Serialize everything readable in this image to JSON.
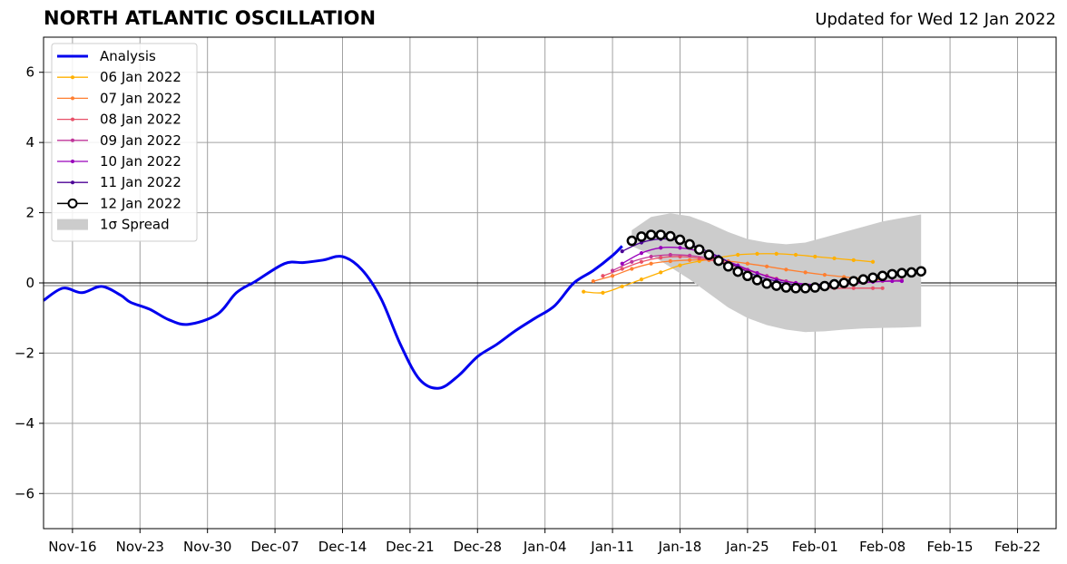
{
  "header": {
    "title": "NORTH ATLANTIC OSCILLATION",
    "updated": "Updated for Wed 12 Jan 2022"
  },
  "chart_data": {
    "type": "line",
    "title": "NORTH ATLANTIC OSCILLATION",
    "subtitle": "Updated for Wed 12 Jan 2022",
    "xlabel": "",
    "ylabel": "",
    "xlim": [
      "2021-11-13",
      "2022-02-26"
    ],
    "ylim": [
      -7,
      7
    ],
    "grid": true,
    "legend_position": "top-left",
    "x_ticks": [
      {
        "date": "2021-11-16",
        "label": "Nov-16"
      },
      {
        "date": "2021-11-23",
        "label": "Nov-23"
      },
      {
        "date": "2021-11-30",
        "label": "Nov-30"
      },
      {
        "date": "2021-12-07",
        "label": "Dec-07"
      },
      {
        "date": "2021-12-14",
        "label": "Dec-14"
      },
      {
        "date": "2021-12-21",
        "label": "Dec-21"
      },
      {
        "date": "2021-12-28",
        "label": "Dec-28"
      },
      {
        "date": "2022-01-04",
        "label": "Jan-04"
      },
      {
        "date": "2022-01-11",
        "label": "Jan-11"
      },
      {
        "date": "2022-01-18",
        "label": "Jan-18"
      },
      {
        "date": "2022-01-25",
        "label": "Jan-25"
      },
      {
        "date": "2022-02-01",
        "label": "Feb-01"
      },
      {
        "date": "2022-02-08",
        "label": "Feb-08"
      },
      {
        "date": "2022-02-15",
        "label": "Feb-15"
      },
      {
        "date": "2022-02-22",
        "label": "Feb-22"
      }
    ],
    "y_ticks": [
      {
        "value": 6,
        "label": "6"
      },
      {
        "value": 4,
        "label": "4"
      },
      {
        "value": 2,
        "label": "2"
      },
      {
        "value": 0,
        "label": "0"
      },
      {
        "value": -2,
        "label": "−2"
      },
      {
        "value": -4,
        "label": "−4"
      },
      {
        "value": -6,
        "label": "−6"
      }
    ],
    "series": [
      {
        "name": "Analysis",
        "color": "#0000ee",
        "style": "thick-line",
        "x": [
          "2021-11-13",
          "2021-11-15",
          "2021-11-17",
          "2021-11-19",
          "2021-11-21",
          "2021-11-22",
          "2021-11-24",
          "2021-11-26",
          "2021-11-28",
          "2021-12-01",
          "2021-12-03",
          "2021-12-05",
          "2021-12-08",
          "2021-12-10",
          "2021-12-12",
          "2021-12-14",
          "2021-12-16",
          "2021-12-18",
          "2021-12-20",
          "2021-12-22",
          "2021-12-24",
          "2021-12-26",
          "2021-12-28",
          "2021-12-30",
          "2022-01-01",
          "2022-01-03",
          "2022-01-05",
          "2022-01-07",
          "2022-01-09",
          "2022-01-11",
          "2022-01-12"
        ],
        "y": [
          -0.5,
          -0.15,
          -0.28,
          -0.1,
          -0.35,
          -0.55,
          -0.75,
          -1.05,
          -1.18,
          -0.9,
          -0.28,
          0.05,
          0.55,
          0.58,
          0.65,
          0.75,
          0.38,
          -0.45,
          -1.75,
          -2.75,
          -3.0,
          -2.65,
          -2.1,
          -1.75,
          -1.35,
          -1.0,
          -0.65,
          0.0,
          0.35,
          0.78,
          1.05
        ]
      },
      {
        "name": "06 Jan 2022",
        "color": "#ffb000",
        "style": "thin-dot",
        "x": [
          "2022-01-08",
          "2022-01-10",
          "2022-01-12",
          "2022-01-14",
          "2022-01-16",
          "2022-01-18",
          "2022-01-20",
          "2022-01-22",
          "2022-01-24",
          "2022-01-26",
          "2022-01-28",
          "2022-01-30",
          "2022-02-01",
          "2022-02-03",
          "2022-02-05",
          "2022-02-07"
        ],
        "y": [
          -0.25,
          -0.28,
          -0.1,
          0.1,
          0.3,
          0.5,
          0.62,
          0.72,
          0.8,
          0.83,
          0.83,
          0.8,
          0.75,
          0.7,
          0.65,
          0.6
        ]
      },
      {
        "name": "07 Jan 2022",
        "color": "#ff7f30",
        "style": "thin-dot",
        "x": [
          "2022-01-09",
          "2022-01-11",
          "2022-01-13",
          "2022-01-15",
          "2022-01-17",
          "2022-01-19",
          "2022-01-21",
          "2022-01-23",
          "2022-01-25",
          "2022-01-27",
          "2022-01-29",
          "2022-01-31",
          "2022-02-02",
          "2022-02-04",
          "2022-02-06",
          "2022-02-08"
        ],
        "y": [
          0.05,
          0.2,
          0.4,
          0.55,
          0.62,
          0.65,
          0.65,
          0.62,
          0.55,
          0.47,
          0.38,
          0.3,
          0.23,
          0.17,
          0.12,
          0.08
        ]
      },
      {
        "name": "08 Jan 2022",
        "color": "#e85068",
        "style": "thin-dot",
        "x": [
          "2022-01-10",
          "2022-01-12",
          "2022-01-14",
          "2022-01-16",
          "2022-01-18",
          "2022-01-20",
          "2022-01-22",
          "2022-01-24",
          "2022-01-26",
          "2022-01-28",
          "2022-01-30",
          "2022-02-01",
          "2022-02-03",
          "2022-02-05",
          "2022-02-07",
          "2022-02-08"
        ],
        "y": [
          0.2,
          0.4,
          0.6,
          0.72,
          0.75,
          0.7,
          0.6,
          0.45,
          0.28,
          0.12,
          0.0,
          -0.1,
          -0.15,
          -0.15,
          -0.15,
          -0.15
        ]
      },
      {
        "name": "09 Jan 2022",
        "color": "#c0359a",
        "style": "thin-dot",
        "x": [
          "2022-01-11",
          "2022-01-13",
          "2022-01-15",
          "2022-01-17",
          "2022-01-19",
          "2022-01-21",
          "2022-01-23",
          "2022-01-25",
          "2022-01-27",
          "2022-01-29",
          "2022-01-31",
          "2022-02-02",
          "2022-02-04",
          "2022-02-06",
          "2022-02-08",
          "2022-02-10"
        ],
        "y": [
          0.35,
          0.6,
          0.75,
          0.8,
          0.78,
          0.7,
          0.55,
          0.38,
          0.2,
          0.05,
          -0.05,
          -0.08,
          -0.05,
          0.0,
          0.05,
          0.08
        ]
      },
      {
        "name": "10 Jan 2022",
        "color": "#9900bb",
        "style": "thin-dot",
        "x": [
          "2022-01-12",
          "2022-01-14",
          "2022-01-16",
          "2022-01-18",
          "2022-01-20",
          "2022-01-22",
          "2022-01-24",
          "2022-01-26",
          "2022-01-28",
          "2022-01-30",
          "2022-02-01",
          "2022-02-03",
          "2022-02-05",
          "2022-02-07",
          "2022-02-09",
          "2022-02-10"
        ],
        "y": [
          0.55,
          0.85,
          1.0,
          1.0,
          0.9,
          0.72,
          0.5,
          0.28,
          0.1,
          0.0,
          -0.05,
          -0.05,
          0.0,
          0.03,
          0.05,
          0.05
        ]
      },
      {
        "name": "11 Jan 2022",
        "color": "#4b0095",
        "style": "thin-dot",
        "x": [
          "2022-01-12",
          "2022-01-14",
          "2022-01-16",
          "2022-01-18",
          "2022-01-20",
          "2022-01-22",
          "2022-01-24",
          "2022-01-26",
          "2022-01-28",
          "2022-01-30",
          "2022-02-01",
          "2022-02-03"
        ],
        "y": [
          0.9,
          1.15,
          1.25,
          1.2,
          1.0,
          0.75,
          0.45,
          0.2,
          0.05,
          -0.05,
          -0.05,
          0.0
        ]
      },
      {
        "name": "12 Jan 2022",
        "color": "#000000",
        "style": "circle-markers",
        "x": [
          "2022-01-13",
          "2022-01-14",
          "2022-01-15",
          "2022-01-16",
          "2022-01-17",
          "2022-01-18",
          "2022-01-19",
          "2022-01-20",
          "2022-01-21",
          "2022-01-22",
          "2022-01-23",
          "2022-01-24",
          "2022-01-25",
          "2022-01-26",
          "2022-01-27",
          "2022-01-28",
          "2022-01-29",
          "2022-01-30",
          "2022-01-31",
          "2022-02-01",
          "2022-02-02",
          "2022-02-03",
          "2022-02-04",
          "2022-02-05",
          "2022-02-06",
          "2022-02-07",
          "2022-02-08",
          "2022-02-09",
          "2022-02-10",
          "2022-02-11",
          "2022-02-12"
        ],
        "y": [
          1.2,
          1.32,
          1.37,
          1.37,
          1.33,
          1.23,
          1.1,
          0.95,
          0.8,
          0.63,
          0.47,
          0.32,
          0.2,
          0.08,
          -0.02,
          -0.08,
          -0.13,
          -0.15,
          -0.15,
          -0.13,
          -0.09,
          -0.04,
          0.0,
          0.05,
          0.1,
          0.15,
          0.2,
          0.25,
          0.28,
          0.3,
          0.33
        ]
      }
    ],
    "spread": {
      "name": "1σ Spread",
      "color": "#cccccc",
      "x": [
        "2022-01-13",
        "2022-01-15",
        "2022-01-17",
        "2022-01-19",
        "2022-01-21",
        "2022-01-23",
        "2022-01-25",
        "2022-01-27",
        "2022-01-29",
        "2022-01-31",
        "2022-02-02",
        "2022-02-04",
        "2022-02-06",
        "2022-02-08",
        "2022-02-10",
        "2022-02-12"
      ],
      "upper": [
        1.5,
        1.88,
        1.98,
        1.9,
        1.7,
        1.45,
        1.25,
        1.15,
        1.1,
        1.15,
        1.3,
        1.45,
        1.6,
        1.75,
        1.85,
        1.95
      ],
      "lower": [
        1.05,
        0.8,
        0.45,
        0.1,
        -0.3,
        -0.7,
        -1.0,
        -1.2,
        -1.33,
        -1.4,
        -1.38,
        -1.33,
        -1.3,
        -1.28,
        -1.27,
        -1.25
      ]
    }
  }
}
